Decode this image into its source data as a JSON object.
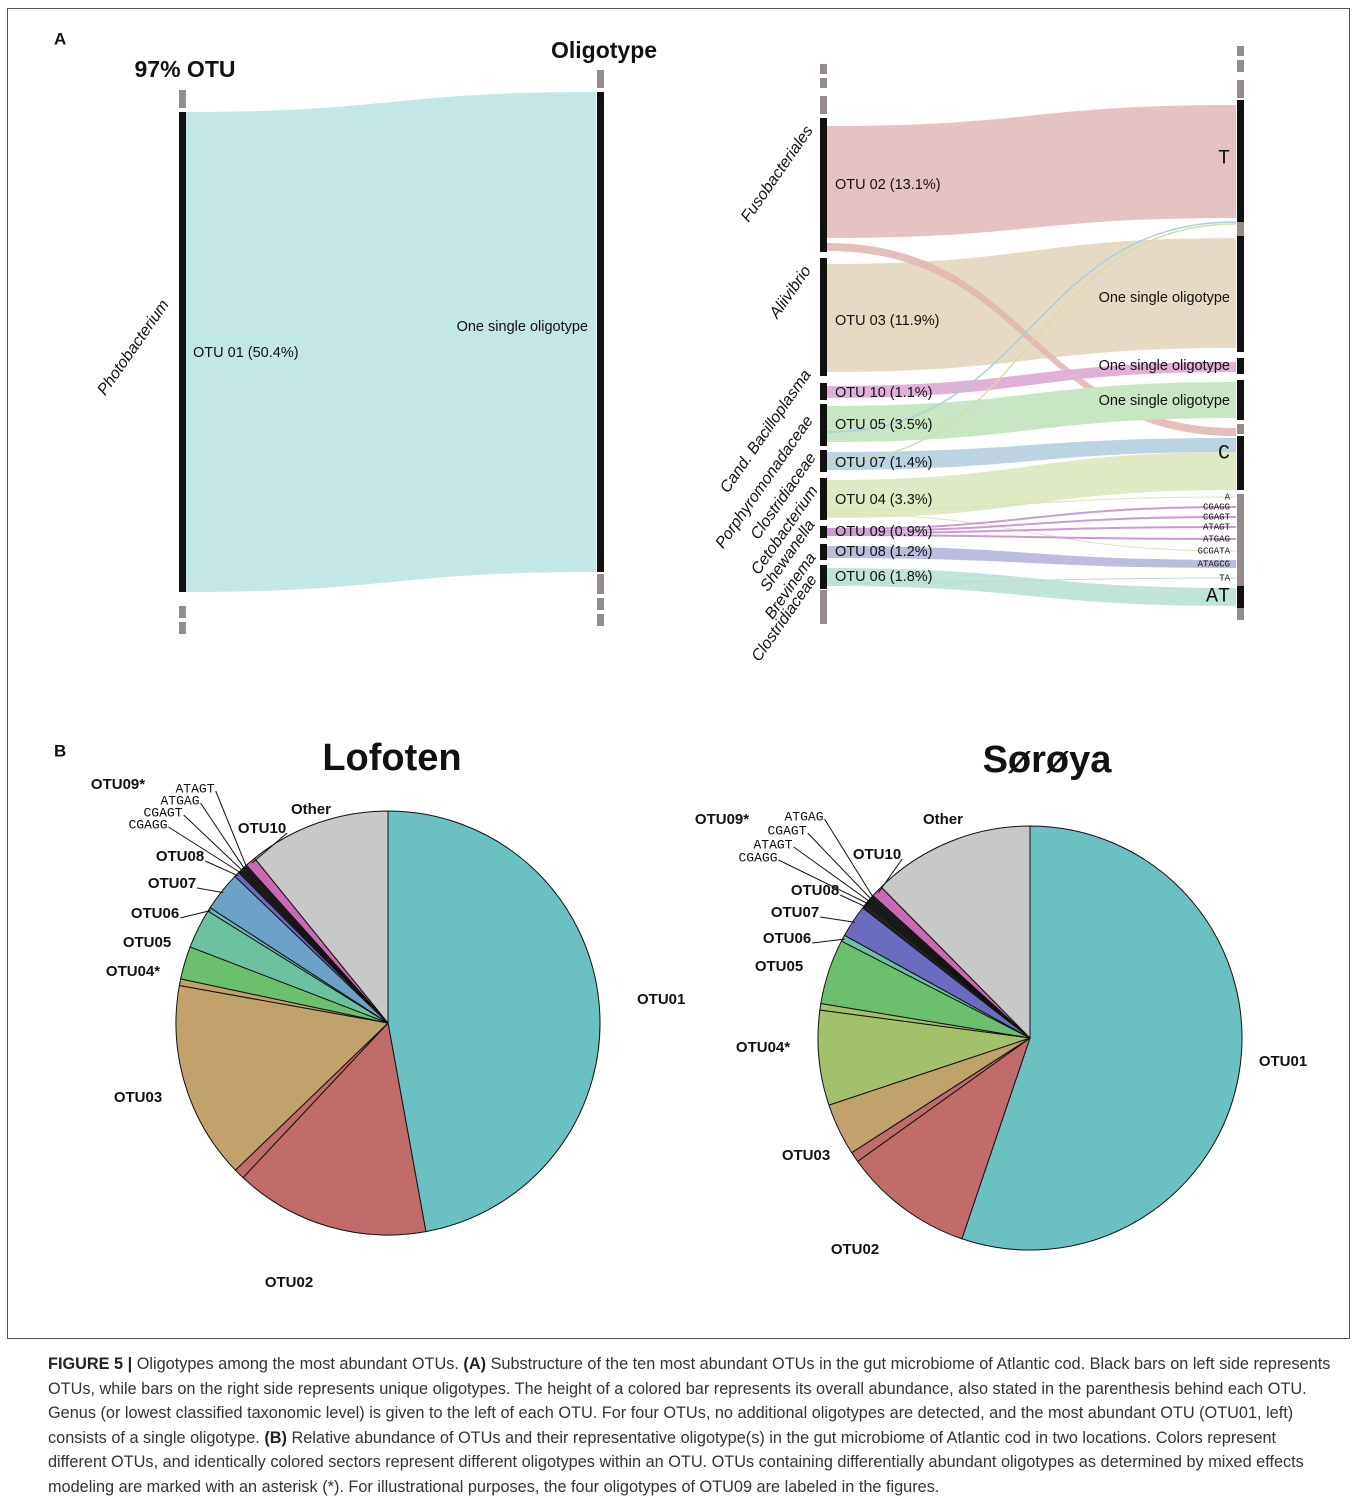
{
  "panel_a": {
    "label": "A",
    "left": {
      "headers": [
        "97% OTU",
        "Oligotype"
      ],
      "genera": [
        "Photobacterium"
      ],
      "otus": [
        "OTU 01 (50.4%)"
      ],
      "oligotypes": [
        "One single oligotype"
      ]
    },
    "right": {
      "genera": [
        "Fusobacteriales",
        "Aliivibrio",
        "Cand. Bacilloplasma",
        "Porphyromonadaceae",
        "Clostridiaceae",
        "Cetobacterium",
        "Shewanella",
        "Brevinema",
        "Clostridiaceae"
      ],
      "otus": [
        "OTU 02 (13.1%)",
        "OTU 03 (11.9%)",
        "OTU 10 (1.1%)",
        "OTU 05 (3.5%)",
        "OTU 07 (1.4%)",
        "OTU 04 (3.3%)",
        "OTU 09 (0.9%)",
        "OTU 08 (1.2%)",
        "OTU 06 (1.8%)"
      ],
      "oligotypes": [
        "T",
        "One single oligotype",
        "One single oligotype",
        "One single oligotype",
        "C",
        "A",
        "CGAGG",
        "CGAGT",
        "ATAGT",
        "ATGAG",
        "GCGATA",
        "ATAGCG",
        "TA",
        "AT"
      ]
    }
  },
  "panel_b_label": "B",
  "chart_data": [
    {
      "type": "pie",
      "title": "Lofoten",
      "categories": [
        "OTU01",
        "OTU02",
        null,
        "OTU03",
        null,
        "OTU04*",
        "OTU05",
        "OTU06",
        "OTU07",
        "OTU08",
        "CGAGG",
        "CGAGT",
        "ATGAG",
        "ATAGT",
        "OTU10",
        "Other"
      ],
      "values": [
        47,
        14.8,
        0.8,
        15,
        0.5,
        2.5,
        3,
        0.3,
        3,
        0.4,
        0.2,
        0.2,
        0.2,
        0.2,
        0.8,
        10.8
      ],
      "colors": [
        "#6bc1c2",
        "#c26b6b",
        "#c26b6b",
        "#c2a26b",
        "#c2a26b",
        "#6bc16b",
        "#6bc1a0",
        "#6bb8c2",
        "#6ba3c7",
        "#6b6bc2",
        "#222222",
        "#222222",
        "#222222",
        "#222222",
        "#c86bb4",
        "#c8c8c8"
      ],
      "annotations": [
        "OTU09*"
      ]
    },
    {
      "type": "pie",
      "title": "Sørøya",
      "categories": [
        "OTU01",
        "OTU02",
        null,
        "OTU03",
        "OTU04*",
        null,
        "OTU05",
        "OTU06",
        "OTU07",
        "OTU08",
        "CGAGG",
        "ATAGT",
        "CGAGT",
        "ATGAG",
        "OTU10",
        "Other"
      ],
      "values": [
        55.7,
        10,
        0.8,
        4,
        7.3,
        0.5,
        5,
        0.5,
        2.5,
        0.4,
        0.2,
        0.2,
        0.2,
        0.2,
        0.9,
        12.5
      ],
      "colors": [
        "#6bc1c2",
        "#c26b6b",
        "#c26b6b",
        "#c2a26b",
        "#a3c16b",
        "#a3c16b",
        "#6bc16b",
        "#6bc1a0",
        "#6b6bc2",
        "#222222",
        "#222222",
        "#222222",
        "#222222",
        "#222222",
        "#c86bb4",
        "#c8c8c8"
      ],
      "annotations": [
        "OTU09*"
      ]
    }
  ],
  "caption": [
    "FIGURE 5 |",
    "Oligotypes among the most abundant OTUs.",
    "(A)",
    "Substructure of the ten most abundant OTUs in the gut microbiome of Atlantic cod. Black bars on left side represents OTUs, while bars on the right side represents unique oligotypes. The height of a colored bar represents its overall abundance, also stated in the parenthesis behind each OTU. Genus (or lowest classified taxonomic level) is given to the left of each OTU. For four OTUs, no additional oligotypes are detected, and the most abundant OTU (OTU01, left) consists of a single oligotype.",
    "(B)",
    "Relative abundance of OTUs and their representative oligotype(s) in the gut microbiome of Atlantic cod in two locations. Colors represent different OTUs, and identically colored sectors represent different oligotypes within an OTU. OTUs containing differentially abundant oligotypes as determined by mixed effects modeling are marked with an asterisk (*). For illustrational purposes, the four oligotypes of OTU09 are labeled in the figures."
  ]
}
